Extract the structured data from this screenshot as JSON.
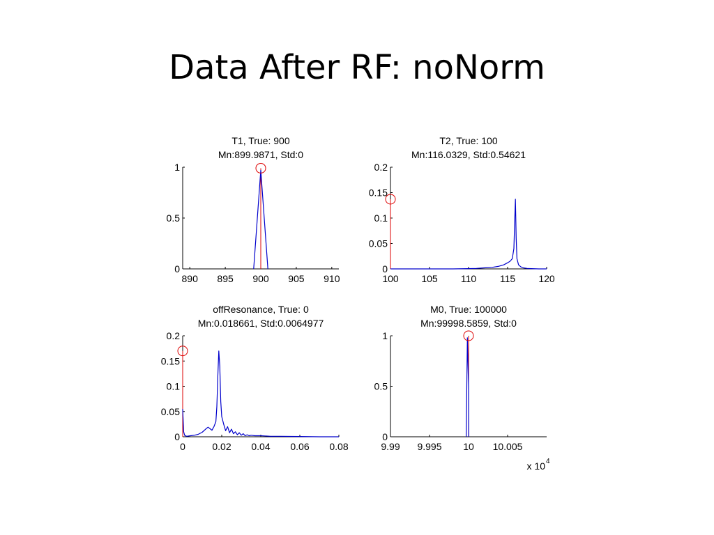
{
  "slide": {
    "title": "Data After RF: noNorm"
  },
  "colors": {
    "histogram": "#0000cc",
    "true_line": "#dd0000",
    "marker": "#dd0000",
    "axis": "#000000"
  },
  "chart_data": [
    {
      "type": "line",
      "id": "t1",
      "title_lines": [
        "T1, True: 900",
        "Mn:899.9871, Std:0"
      ],
      "xlim": [
        889,
        911
      ],
      "ylim": [
        0,
        1
      ],
      "xticks": [
        890,
        895,
        900,
        905,
        910
      ],
      "xtick_labels": [
        "890",
        "895",
        "900",
        "905",
        "910"
      ],
      "yticks": [
        0,
        0.5,
        1
      ],
      "ytick_labels": [
        "0",
        "0.5",
        "1"
      ],
      "exponent_label": "",
      "true_value": 900,
      "marker": [
        900,
        0.99
      ],
      "series": [
        {
          "x": [
            899,
            900,
            901
          ],
          "y": [
            0,
            0.97,
            0
          ]
        }
      ]
    },
    {
      "type": "line",
      "id": "t2",
      "title_lines": [
        "T2, True: 100",
        "Mn:116.0329, Std:0.54621"
      ],
      "xlim": [
        100,
        120
      ],
      "ylim": [
        0,
        0.2
      ],
      "xticks": [
        100,
        105,
        110,
        115,
        120
      ],
      "xtick_labels": [
        "100",
        "105",
        "110",
        "115",
        "120"
      ],
      "yticks": [
        0,
        0.05,
        0.1,
        0.15,
        0.2
      ],
      "ytick_labels": [
        "0",
        "0.05",
        "0.1",
        "0.15",
        "0.2"
      ],
      "exponent_label": "",
      "true_value": 100,
      "marker": [
        100,
        0.137
      ],
      "series": [
        {
          "x": [
            100,
            108,
            110,
            111,
            112,
            113,
            113.8,
            114.5,
            115,
            115.3,
            115.6,
            115.8,
            115.9,
            116.0,
            116.1,
            116.2,
            116.4,
            116.7,
            117,
            117.5,
            118,
            119,
            120
          ],
          "y": [
            0,
            0,
            0.0005,
            0.001,
            0.002,
            0.003,
            0.005,
            0.008,
            0.012,
            0.015,
            0.02,
            0.04,
            0.09,
            0.137,
            0.06,
            0.02,
            0.008,
            0.004,
            0.002,
            0.001,
            0.0005,
            0,
            0
          ]
        }
      ]
    },
    {
      "type": "line",
      "id": "offresonance",
      "title_lines": [
        "offResonance, True: 0",
        "Mn:0.018661, Std:0.0064977"
      ],
      "xlim": [
        0,
        0.08
      ],
      "ylim": [
        0,
        0.2
      ],
      "xticks": [
        0,
        0.02,
        0.04,
        0.06,
        0.08
      ],
      "xtick_labels": [
        "0",
        "0.02",
        "0.04",
        "0.06",
        "0.08"
      ],
      "yticks": [
        0,
        0.05,
        0.1,
        0.15,
        0.2
      ],
      "ytick_labels": [
        "0",
        "0.05",
        "0.1",
        "0.15",
        "0.2"
      ],
      "exponent_label": "",
      "true_value": 0,
      "marker": [
        0,
        0.17
      ],
      "series": [
        {
          "x": [
            0,
            0.0005,
            0.001,
            0.002,
            0.004,
            0.006,
            0.008,
            0.01,
            0.012,
            0.013,
            0.014,
            0.015,
            0.016,
            0.017,
            0.0175,
            0.018,
            0.0185,
            0.019,
            0.0195,
            0.02,
            0.021,
            0.022,
            0.023,
            0.024,
            0.025,
            0.026,
            0.027,
            0.028,
            0.029,
            0.03,
            0.031,
            0.032,
            0.033,
            0.034,
            0.035,
            0.037,
            0.04,
            0.045,
            0.05,
            0.06,
            0.07,
            0.08
          ],
          "y": [
            0.055,
            0.01,
            0.003,
            0.001,
            0.002,
            0.003,
            0.005,
            0.009,
            0.016,
            0.019,
            0.016,
            0.013,
            0.02,
            0.03,
            0.06,
            0.12,
            0.17,
            0.14,
            0.07,
            0.04,
            0.025,
            0.012,
            0.02,
            0.008,
            0.015,
            0.006,
            0.01,
            0.004,
            0.008,
            0.003,
            0.006,
            0.002,
            0.004,
            0.002,
            0.003,
            0.002,
            0.002,
            0.001,
            0.001,
            0.0005,
            0,
            0
          ]
        }
      ]
    },
    {
      "type": "line",
      "id": "m0",
      "title_lines": [
        "M0, True: 100000",
        "Mn:99998.5859, Std:0"
      ],
      "xlim": [
        9.99,
        10.01
      ],
      "ylim": [
        0,
        1
      ],
      "xticks": [
        9.99,
        9.995,
        10,
        10.005
      ],
      "xtick_labels": [
        "9.99",
        "9.995",
        "10",
        "10.005"
      ],
      "yticks": [
        0,
        0.5,
        1
      ],
      "ytick_labels": [
        "0",
        "0.5",
        "1"
      ],
      "exponent_label": "x 10",
      "exponent_power": "4",
      "true_value": 10,
      "marker": [
        10,
        1.0
      ],
      "series": [
        {
          "x": [
            9.9997,
            9.99985,
            10.0,
            10.00002
          ],
          "y": [
            0,
            0.98,
            0.5,
            0
          ]
        }
      ]
    }
  ]
}
